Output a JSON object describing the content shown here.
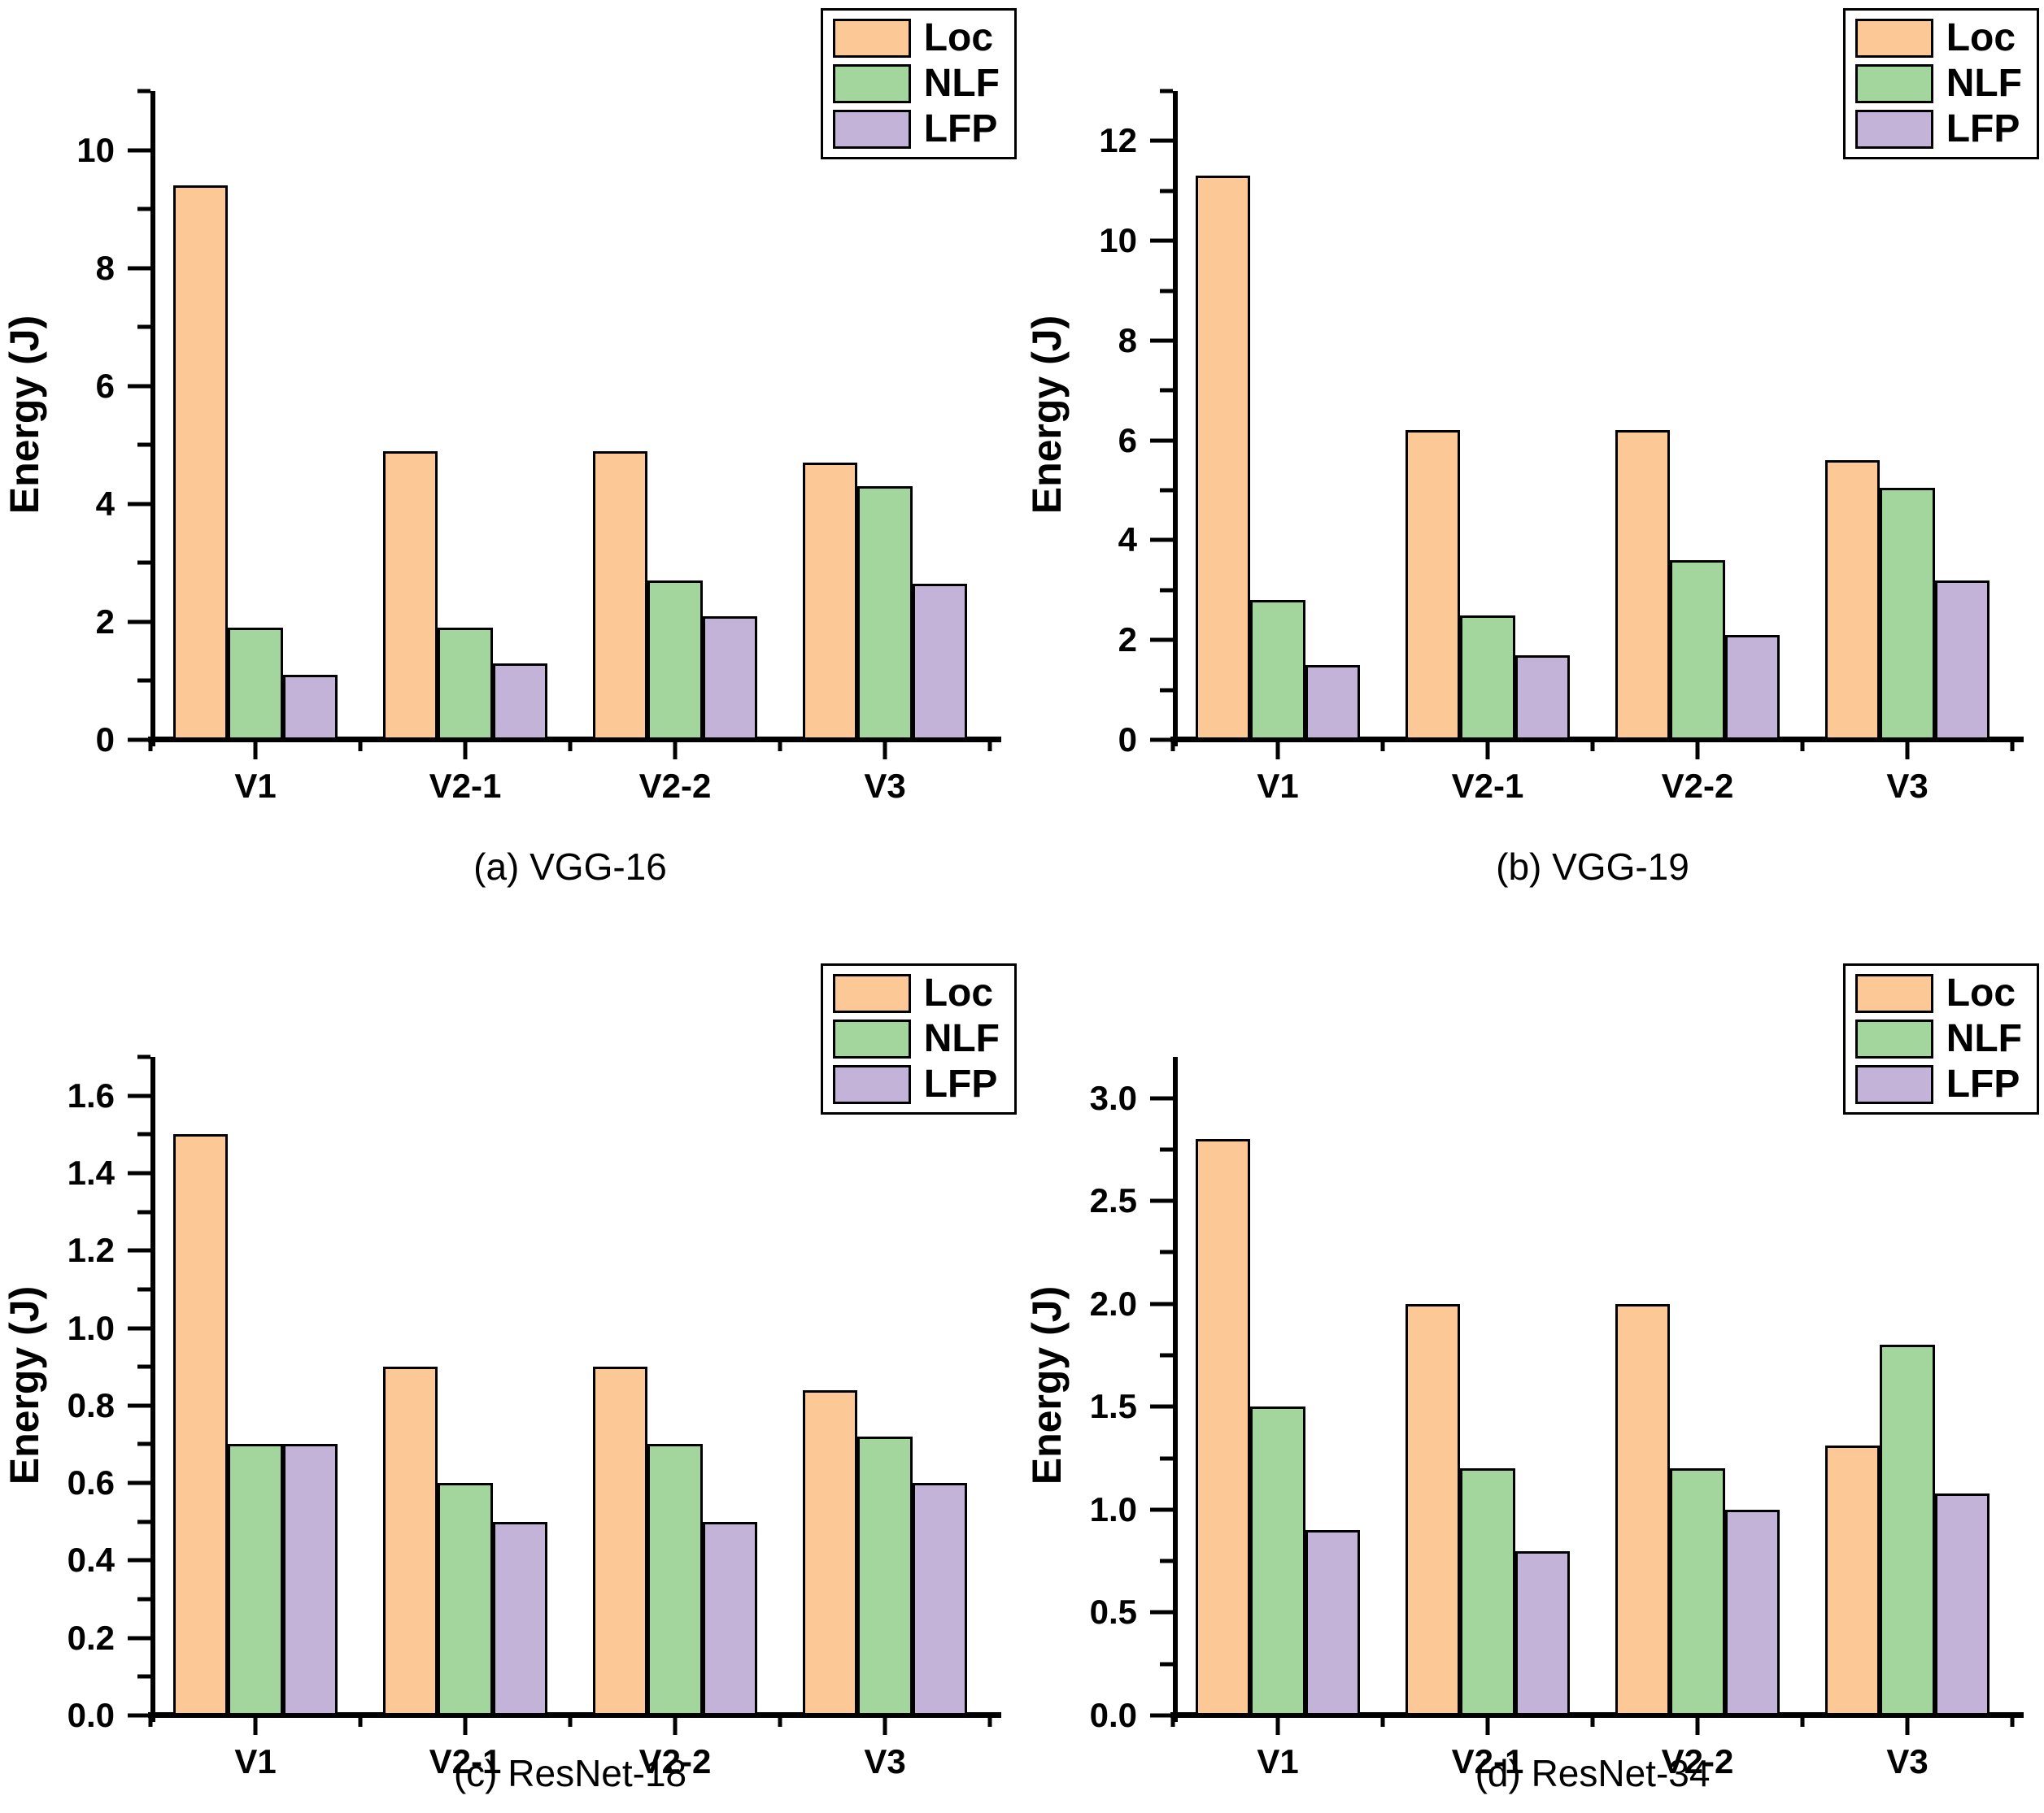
{
  "figure_title": "",
  "chart_data": [
    {
      "type": "bar",
      "id": "a",
      "caption": "(a) VGG-16",
      "ylabel": "Energy (J)",
      "categories": [
        "V1",
        "V2-1",
        "V2-2",
        "V3"
      ],
      "series": [
        {
          "name": "Loc",
          "color": "#FBC896",
          "values": [
            9.4,
            4.9,
            4.9,
            4.7
          ]
        },
        {
          "name": "NLF",
          "color": "#A2D69C",
          "values": [
            1.9,
            1.9,
            2.7,
            4.3
          ]
        },
        {
          "name": "LFP",
          "color": "#C3B3D8",
          "values": [
            1.1,
            1.3,
            2.1,
            2.65
          ]
        }
      ],
      "ylim": [
        0,
        11
      ],
      "ymajor": [
        0,
        2,
        4,
        6,
        8,
        10
      ],
      "ymajor_labels": [
        "0",
        "2",
        "4",
        "6",
        "8",
        "10"
      ],
      "yminor": [
        1,
        3,
        5,
        7,
        9,
        11
      ],
      "grid": false,
      "legend_position": "top-right"
    },
    {
      "type": "bar",
      "id": "b",
      "caption": "(b) VGG-19",
      "ylabel": "Energy (J)",
      "categories": [
        "V1",
        "V2-1",
        "V2-2",
        "V3"
      ],
      "series": [
        {
          "name": "Loc",
          "color": "#FBC896",
          "values": [
            11.3,
            6.2,
            6.2,
            5.6
          ]
        },
        {
          "name": "NLF",
          "color": "#A2D69C",
          "values": [
            2.8,
            2.5,
            3.6,
            5.05
          ]
        },
        {
          "name": "LFP",
          "color": "#C3B3D8",
          "values": [
            1.5,
            1.7,
            2.1,
            3.2
          ]
        }
      ],
      "ylim": [
        0,
        13
      ],
      "ymajor": [
        0,
        2,
        4,
        6,
        8,
        10,
        12
      ],
      "ymajor_labels": [
        "0",
        "2",
        "4",
        "6",
        "8",
        "10",
        "12"
      ],
      "yminor": [
        1,
        3,
        5,
        7,
        9,
        11,
        13
      ],
      "grid": false,
      "legend_position": "top-right"
    },
    {
      "type": "bar",
      "id": "c",
      "caption": "(c) ResNet-18",
      "ylabel": "Energy (J)",
      "categories": [
        "V1",
        "V2-1",
        "V2-2",
        "V3"
      ],
      "series": [
        {
          "name": "Loc",
          "color": "#FBC896",
          "values": [
            1.5,
            0.9,
            0.9,
            0.84
          ]
        },
        {
          "name": "NLF",
          "color": "#A2D69C",
          "values": [
            0.7,
            0.6,
            0.7,
            0.72
          ]
        },
        {
          "name": "LFP",
          "color": "#C3B3D8",
          "values": [
            0.7,
            0.5,
            0.5,
            0.6
          ]
        }
      ],
      "ylim": [
        0,
        1.7
      ],
      "ymajor": [
        0,
        0.2,
        0.4,
        0.6,
        0.8,
        1.0,
        1.2,
        1.4,
        1.6
      ],
      "ymajor_labels": [
        "0.0",
        "0.2",
        "0.4",
        "0.6",
        "0.8",
        "1.0",
        "1.2",
        "1.4",
        "1.6"
      ],
      "yminor": [
        0.1,
        0.3,
        0.5,
        0.7,
        0.9,
        1.1,
        1.3,
        1.5,
        1.7
      ],
      "grid": false,
      "legend_position": "top-right"
    },
    {
      "type": "bar",
      "id": "d",
      "caption": "(d) ResNet-34",
      "ylabel": "Energy (J)",
      "categories": [
        "V1",
        "V2-1",
        "V2-2",
        "V3"
      ],
      "series": [
        {
          "name": "Loc",
          "color": "#FBC896",
          "values": [
            2.8,
            2.0,
            2.0,
            1.31
          ]
        },
        {
          "name": "NLF",
          "color": "#A2D69C",
          "values": [
            1.5,
            1.2,
            1.2,
            1.8
          ]
        },
        {
          "name": "LFP",
          "color": "#C3B3D8",
          "values": [
            0.9,
            0.8,
            1.0,
            1.08
          ]
        }
      ],
      "ylim": [
        0,
        3.2
      ],
      "ymajor": [
        0,
        0.5,
        1.0,
        1.5,
        2.0,
        2.5,
        3.0
      ],
      "ymajor_labels": [
        "0.0",
        "0.5",
        "1.0",
        "1.5",
        "2.0",
        "2.5",
        "3.0"
      ],
      "yminor": [
        0.25,
        0.75,
        1.25,
        1.75,
        2.25,
        2.75
      ],
      "grid": false,
      "legend_position": "top-right"
    }
  ]
}
